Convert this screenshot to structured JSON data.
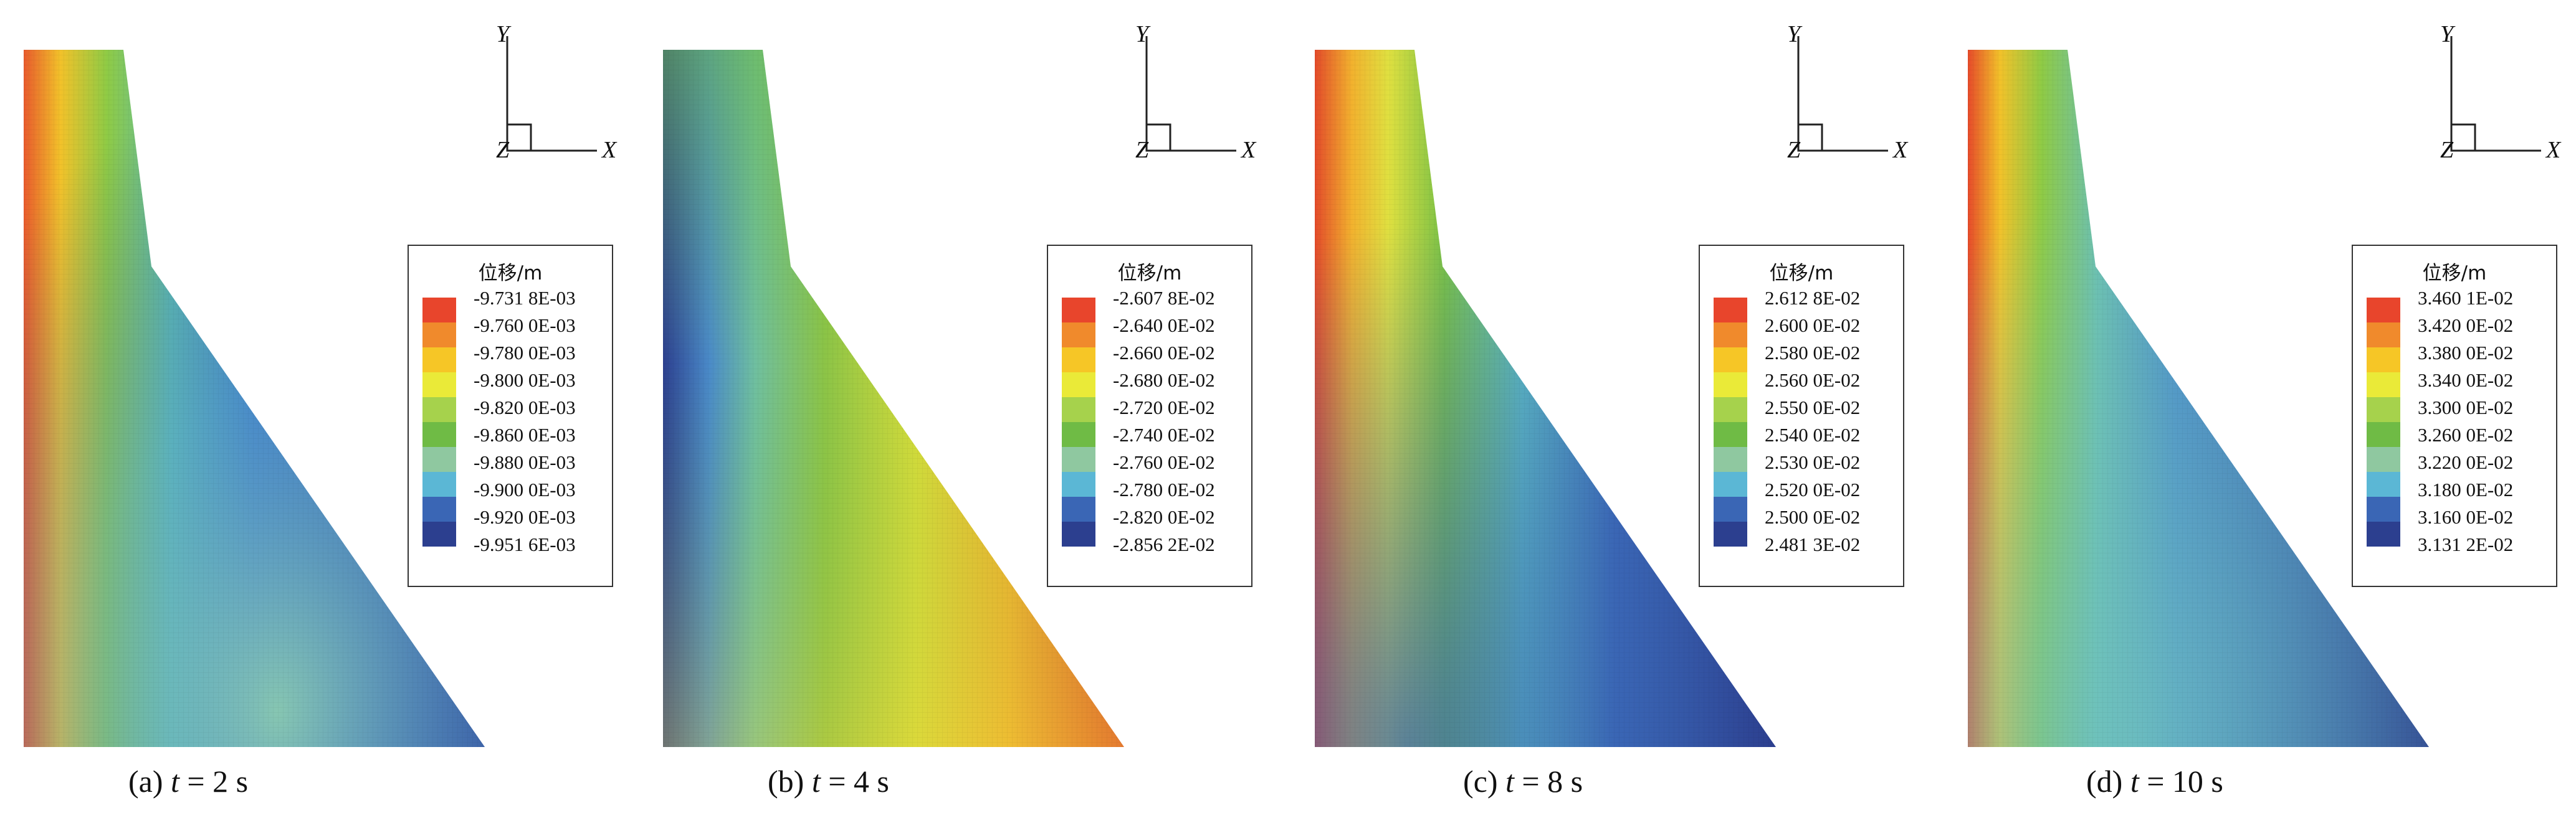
{
  "legend_title": "位移/m",
  "axis_labels": {
    "y": "Y",
    "z": "Z",
    "x": "X"
  },
  "palette": [
    "#e8452c",
    "#f08a2c",
    "#f6c626",
    "#eaea38",
    "#a6d24c",
    "#6fbb45",
    "#8fc8a0",
    "#5bb7d5",
    "#3a66b5",
    "#2c3f8f"
  ],
  "panels": [
    {
      "caption_prefix": "(a) ",
      "caption_var": "t",
      "caption_rest": " = 2 s",
      "ticks": [
        "-9.731 8E-03",
        "-9.760 0E-03",
        "-9.780 0E-03",
        "-9.800 0E-03",
        "-9.820 0E-03",
        "-9.860 0E-03",
        "-9.880 0E-03",
        "-9.900 0E-03",
        "-9.920 0E-03",
        "-9.951 6E-03"
      ]
    },
    {
      "caption_prefix": "(b) ",
      "caption_var": "t",
      "caption_rest": " = 4 s",
      "ticks": [
        "-2.607 8E-02",
        "-2.640 0E-02",
        "-2.660 0E-02",
        "-2.680 0E-02",
        "-2.720 0E-02",
        "-2.740 0E-02",
        "-2.760 0E-02",
        "-2.780 0E-02",
        "-2.820 0E-02",
        "-2.856 2E-02"
      ]
    },
    {
      "caption_prefix": "(c) ",
      "caption_var": "t",
      "caption_rest": " = 8 s",
      "ticks": [
        "2.612 8E-02",
        "2.600 0E-02",
        "2.580 0E-02",
        "2.560 0E-02",
        "2.550 0E-02",
        "2.540 0E-02",
        "2.530 0E-02",
        "2.520 0E-02",
        "2.500 0E-02",
        "2.481 3E-02"
      ]
    },
    {
      "caption_prefix": "(d) ",
      "caption_var": "t",
      "caption_rest": " = 10 s",
      "ticks": [
        "3.460 1E-02",
        "3.420 0E-02",
        "3.380 0E-02",
        "3.340 0E-02",
        "3.300 0E-02",
        "3.260 0E-02",
        "3.220 0E-02",
        "3.180 0E-02",
        "3.160 0E-02",
        "3.131 2E-02"
      ]
    }
  ]
}
